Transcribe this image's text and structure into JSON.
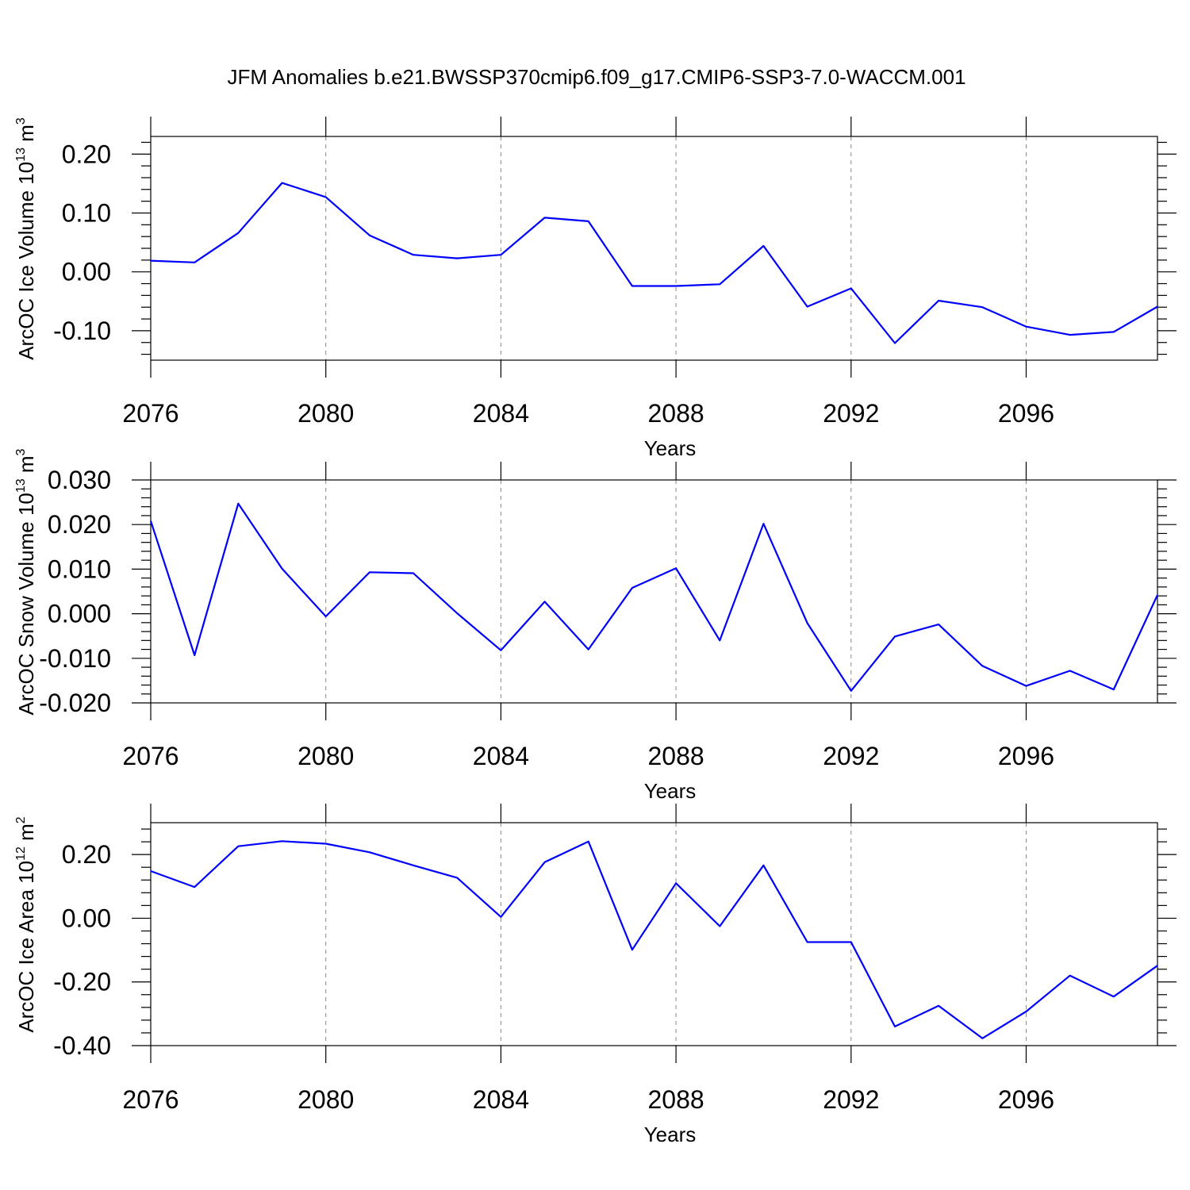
{
  "title": "JFM Anomalies b.e21.BWSSP370cmip6.f09_g17.CMIP6-SSP3-7.0-WACCM.001",
  "colors": {
    "line": "#0000ff",
    "axis": "#000000",
    "grid": "#888888"
  },
  "chart_data": [
    {
      "type": "line",
      "xlabel": "Years",
      "ylabel_main": "ArcOC Ice Volume 10",
      "ylabel_exp": "13",
      "ylabel_unit": " m",
      "ylabel_unit_exp": "3",
      "xlim": [
        2076,
        2099
      ],
      "ylim": [
        -0.15,
        0.23
      ],
      "xticks": [
        2076,
        2080,
        2084,
        2088,
        2092,
        2096
      ],
      "xtick_labels": [
        "2076",
        "2080",
        "2084",
        "2088",
        "2092",
        "2096"
      ],
      "yticks": [
        0.2,
        0.1,
        0.0,
        -0.1
      ],
      "ytick_labels": [
        "0.20",
        "0.10",
        "0.00",
        "-0.10"
      ],
      "grid": "vertical dashed at major x ticks",
      "x": [
        2076,
        2077,
        2078,
        2079,
        2080,
        2081,
        2082,
        2083,
        2084,
        2085,
        2086,
        2087,
        2088,
        2089,
        2090,
        2091,
        2092,
        2093,
        2094,
        2095,
        2096,
        2097,
        2098,
        2099
      ],
      "values": [
        0.019,
        0.016,
        0.066,
        0.151,
        0.127,
        0.062,
        0.029,
        0.023,
        0.029,
        0.092,
        0.086,
        -0.024,
        -0.024,
        -0.021,
        0.044,
        -0.059,
        -0.028,
        -0.121,
        -0.049,
        -0.06,
        -0.093,
        -0.107,
        -0.102,
        -0.059
      ]
    },
    {
      "type": "line",
      "xlabel": "Years",
      "ylabel_main": "ArcOC Snow Volume 10",
      "ylabel_exp": "13",
      "ylabel_unit": " m",
      "ylabel_unit_exp": "3",
      "xlim": [
        2076,
        2099
      ],
      "ylim": [
        -0.02,
        0.03
      ],
      "xticks": [
        2076,
        2080,
        2084,
        2088,
        2092,
        2096
      ],
      "xtick_labels": [
        "2076",
        "2080",
        "2084",
        "2088",
        "2092",
        "2096"
      ],
      "yticks": [
        0.03,
        0.02,
        0.01,
        0.0,
        -0.01,
        -0.02
      ],
      "ytick_labels": [
        "0.030",
        "0.020",
        "0.010",
        "0.000",
        "-0.010",
        "-0.020"
      ],
      "grid": "vertical dashed at major x ticks",
      "x": [
        2076,
        2077,
        2078,
        2079,
        2080,
        2081,
        2082,
        2083,
        2084,
        2085,
        2086,
        2087,
        2088,
        2089,
        2090,
        2091,
        2092,
        2093,
        2094,
        2095,
        2096,
        2097,
        2098,
        2099
      ],
      "values": [
        0.0208,
        -0.0093,
        0.0247,
        0.0101,
        -0.0006,
        0.0093,
        0.0091,
        0.0001,
        -0.0082,
        0.0027,
        -0.008,
        0.0058,
        0.0102,
        -0.006,
        0.0202,
        -0.0021,
        -0.0173,
        -0.0051,
        -0.0024,
        -0.0117,
        -0.0162,
        -0.0128,
        -0.017,
        0.0042
      ]
    },
    {
      "type": "line",
      "xlabel": "Years",
      "ylabel_main": "ArcOC Ice Area 10",
      "ylabel_exp": "12",
      "ylabel_unit": " m",
      "ylabel_unit_exp": "2",
      "xlim": [
        2076,
        2099
      ],
      "ylim": [
        -0.4,
        0.3
      ],
      "xticks": [
        2076,
        2080,
        2084,
        2088,
        2092,
        2096
      ],
      "xtick_labels": [
        "2076",
        "2080",
        "2084",
        "2088",
        "2092",
        "2096"
      ],
      "yticks": [
        0.2,
        0.0,
        -0.2,
        -0.4
      ],
      "ytick_labels": [
        "0.20",
        "0.00",
        "-0.20",
        "-0.40"
      ],
      "grid": "vertical dashed at major x ticks",
      "x": [
        2076,
        2077,
        2078,
        2079,
        2080,
        2081,
        2082,
        2083,
        2084,
        2085,
        2086,
        2087,
        2088,
        2089,
        2090,
        2091,
        2092,
        2093,
        2094,
        2095,
        2096,
        2097,
        2098,
        2099
      ],
      "values": [
        0.148,
        0.098,
        0.226,
        0.242,
        0.234,
        0.207,
        0.166,
        0.127,
        0.004,
        0.176,
        0.241,
        -0.099,
        0.11,
        -0.025,
        0.166,
        -0.075,
        -0.075,
        -0.34,
        -0.275,
        -0.377,
        -0.293,
        -0.18,
        -0.246,
        -0.149
      ]
    }
  ]
}
